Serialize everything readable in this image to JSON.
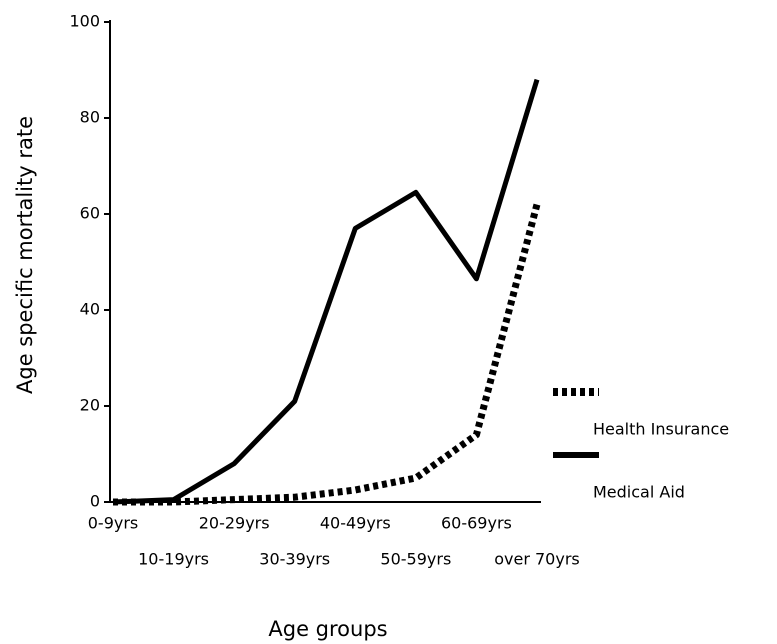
{
  "chart_data": {
    "type": "line",
    "xlabel": "Age groups",
    "ylabel": "Age specific mortality rate",
    "categories": [
      "0-9yrs",
      "10-19yrs",
      "20-29yrs",
      "30-39yrs",
      "40-49yrs",
      "50-59yrs",
      "60-69yrs",
      "over 70yrs"
    ],
    "series": [
      {
        "name": "Health Insurance",
        "color": "#000000",
        "dash": "dotted",
        "values": [
          0,
          0,
          0.5,
          1,
          2.5,
          5,
          14,
          62
        ]
      },
      {
        "name": "Medical Aid",
        "color": "#000000",
        "dash": "solid",
        "values": [
          0,
          0.5,
          8,
          21,
          57,
          64.5,
          46.5,
          88
        ]
      }
    ],
    "ylim": [
      0,
      100
    ],
    "yticks": [
      0,
      20,
      40,
      60,
      80,
      100
    ],
    "grid": false,
    "legend": "right"
  }
}
